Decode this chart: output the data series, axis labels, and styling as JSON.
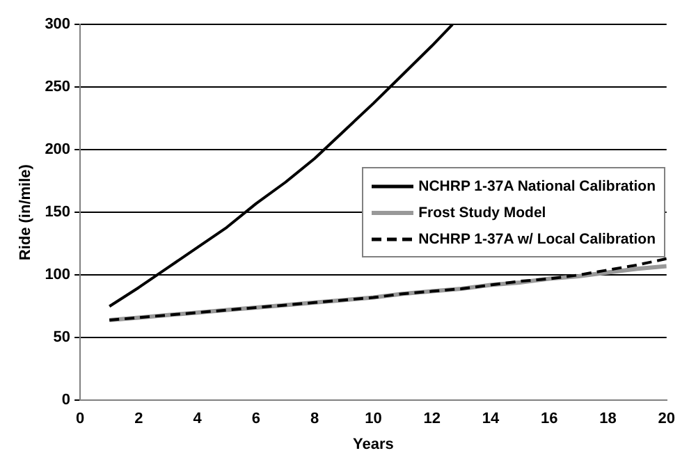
{
  "chart_data": {
    "type": "line",
    "xlabel": "Years",
    "ylabel": "Ride (in/mile)",
    "xlim": [
      0,
      20
    ],
    "xticks": [
      0,
      2,
      4,
      6,
      8,
      10,
      12,
      14,
      16,
      18,
      20
    ],
    "ylim": [
      0,
      300
    ],
    "yticks": [
      0,
      50,
      100,
      150,
      200,
      250,
      300
    ],
    "grid": "y",
    "legend": "right",
    "marker": "none",
    "series": [
      {
        "name": "NCHRP 1-37A National Calibration",
        "color": "#000000",
        "line_style": "solid",
        "x": [
          1,
          2,
          3,
          4,
          5,
          6,
          7,
          8,
          9,
          10,
          11,
          12,
          12.7
        ],
        "values": [
          75,
          90,
          106,
          122,
          138,
          157,
          174,
          193,
          215,
          237,
          260,
          283,
          300
        ]
      },
      {
        "name": "Frost Study Model",
        "color": "#999999",
        "line_style": "solid",
        "x": [
          1,
          2,
          3,
          4,
          5,
          6,
          7,
          8,
          9,
          10,
          11,
          12,
          13,
          14,
          15,
          16,
          17,
          18,
          19,
          20
        ],
        "values": [
          64,
          66,
          68,
          70,
          72,
          74,
          76,
          78,
          80,
          82,
          85,
          87,
          89,
          92,
          94,
          97,
          99,
          102,
          105,
          107
        ]
      },
      {
        "name": "NCHRP 1-37A w/ Local Calibration",
        "color": "#000000",
        "line_style": "dashed",
        "x": [
          1,
          2,
          3,
          4,
          5,
          6,
          7,
          8,
          9,
          10,
          11,
          12,
          13,
          14,
          15,
          16,
          17,
          18,
          19,
          20
        ],
        "values": [
          64,
          66,
          68,
          70,
          72,
          74,
          76,
          78,
          80,
          82,
          85,
          87,
          89,
          92,
          95,
          97,
          100,
          104,
          108,
          113
        ]
      }
    ]
  }
}
